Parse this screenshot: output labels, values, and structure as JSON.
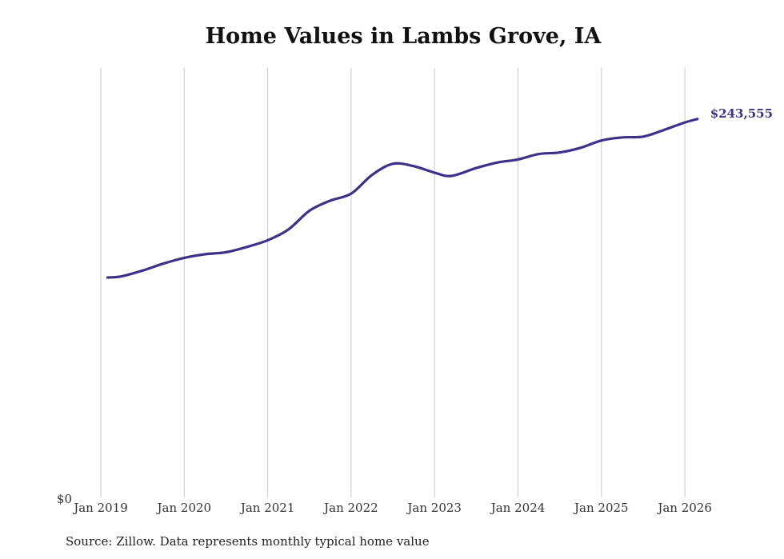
{
  "chart_data": {
    "type": "line",
    "title": "Home Values in Lambs Grove, IA",
    "xlabel": "",
    "ylabel": "",
    "y_origin_label": "$0",
    "ylim": [
      0,
      270000
    ],
    "x_tick_labels": [
      "Jan 2019",
      "Jan 2020",
      "Jan 2021",
      "Jan 2022",
      "Jan 2023",
      "Jan 2024",
      "Jan 2025",
      "Jan 2026"
    ],
    "x_tick_years": [
      2019,
      2020,
      2021,
      2022,
      2023,
      2024,
      2025,
      2026
    ],
    "grid": "vertical",
    "series": [
      {
        "name": "Typical home value",
        "color": "#3d3189",
        "end_label": "$243,555",
        "points": [
          {
            "t": 2019.08,
            "value": 141500
          },
          {
            "t": 2019.25,
            "value": 142300
          },
          {
            "t": 2019.5,
            "value": 146000
          },
          {
            "t": 2019.75,
            "value": 150500
          },
          {
            "t": 2020.0,
            "value": 154200
          },
          {
            "t": 2020.25,
            "value": 156500
          },
          {
            "t": 2020.5,
            "value": 157800
          },
          {
            "t": 2020.75,
            "value": 161200
          },
          {
            "t": 2021.0,
            "value": 165500
          },
          {
            "t": 2021.25,
            "value": 172500
          },
          {
            "t": 2021.5,
            "value": 184500
          },
          {
            "t": 2021.75,
            "value": 191000
          },
          {
            "t": 2022.0,
            "value": 195500
          },
          {
            "t": 2022.25,
            "value": 207500
          },
          {
            "t": 2022.5,
            "value": 214700
          },
          {
            "t": 2022.75,
            "value": 213200
          },
          {
            "t": 2023.0,
            "value": 209000
          },
          {
            "t": 2023.2,
            "value": 206900
          },
          {
            "t": 2023.5,
            "value": 212000
          },
          {
            "t": 2023.75,
            "value": 215500
          },
          {
            "t": 2024.0,
            "value": 217500
          },
          {
            "t": 2024.25,
            "value": 221000
          },
          {
            "t": 2024.5,
            "value": 222000
          },
          {
            "t": 2024.75,
            "value": 225000
          },
          {
            "t": 2025.0,
            "value": 229700
          },
          {
            "t": 2025.25,
            "value": 231700
          },
          {
            "t": 2025.5,
            "value": 232200
          },
          {
            "t": 2025.75,
            "value": 236500
          },
          {
            "t": 2026.0,
            "value": 241300
          },
          {
            "t": 2026.15,
            "value": 243555
          }
        ]
      }
    ]
  },
  "source_note": "Source: Zillow. Data represents monthly typical home value"
}
